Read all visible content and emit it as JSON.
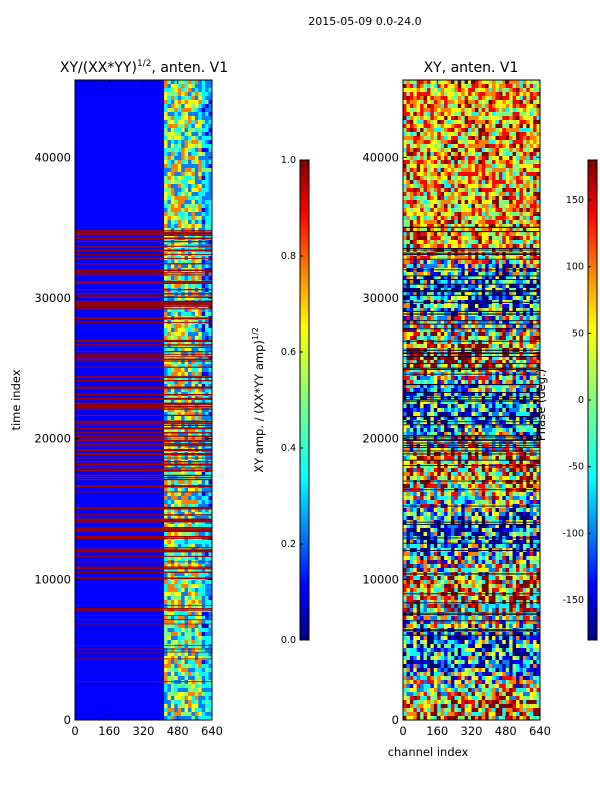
{
  "figure": {
    "suptitle": "2015-05-09 0.0-24.0"
  },
  "colors": {
    "jet": [
      "#00007f",
      "#0000ff",
      "#007fff",
      "#00ffff",
      "#7fff7f",
      "#ffff00",
      "#ff7f00",
      "#ff0000",
      "#7f0000"
    ],
    "band_line": "#a00000",
    "dark_line": "#000033"
  },
  "chart_data": [
    {
      "type": "heatmap",
      "title_base": "XY/(XX*YY)",
      "title_exp": "1/2",
      "title_tail": ", anten. V1",
      "xlabel": "",
      "ylabel": "time index",
      "xlim": [
        0,
        640
      ],
      "ylim": [
        0,
        45500
      ],
      "xticks": [
        "0",
        "160",
        "320",
        "480",
        "640"
      ],
      "yticks": [
        "0",
        "10000",
        "20000",
        "30000",
        "40000"
      ],
      "colorbar": {
        "label": "XY amp. / (XX*YY amp)",
        "label_exp": "1/2",
        "range": [
          0.0,
          1.0
        ],
        "ticks": [
          "0.0",
          "0.2",
          "0.4",
          "0.6",
          "0.8",
          "1.0"
        ]
      }
    },
    {
      "type": "heatmap",
      "title": "XY, anten. V1",
      "xlabel": "channel index",
      "ylabel": "",
      "xlim": [
        0,
        640
      ],
      "ylim": [
        0,
        45500
      ],
      "xticks": [
        "0",
        "160",
        "320",
        "480",
        "640"
      ],
      "yticks": [
        "0",
        "10000",
        "20000",
        "30000",
        "40000"
      ],
      "colorbar": {
        "label": "Phase (deg.)",
        "range": [
          -180,
          180
        ],
        "ticks": [
          "-150",
          "-100",
          "-50",
          "0",
          "50",
          "100",
          "150"
        ]
      }
    }
  ]
}
